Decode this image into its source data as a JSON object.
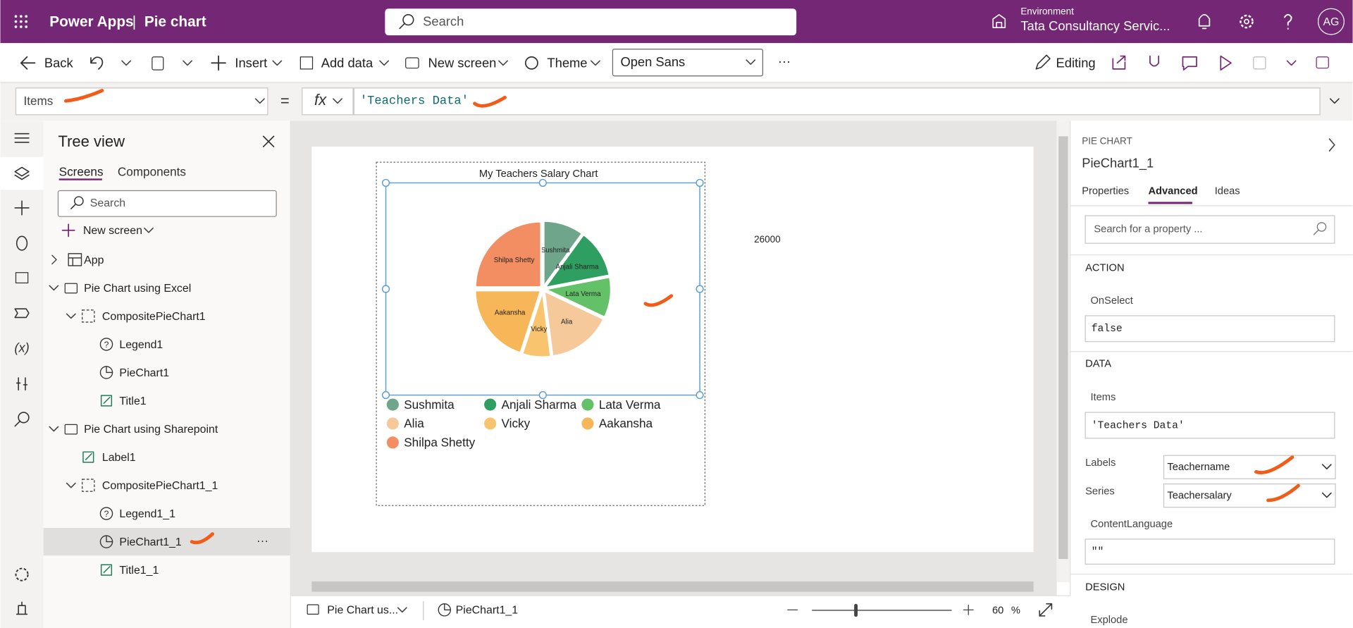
{
  "header": {
    "app_name": "Power Apps",
    "separator": "|",
    "page_name": "Pie chart",
    "search_placeholder": "Search",
    "environment_label": "Environment",
    "environment_name": "Tata Consultancy Servic...",
    "user_initials": "AG"
  },
  "toolbar": {
    "back": "Back",
    "insert": "Insert",
    "add_data": "Add data",
    "new_screen": "New screen",
    "theme": "Theme",
    "font": "Open Sans",
    "more": "···",
    "editing": "Editing"
  },
  "formula_bar": {
    "property": "Items",
    "equals": "=",
    "fx": "fx",
    "formula": "'Teachers Data'"
  },
  "tree_view": {
    "title": "Tree view",
    "tabs": [
      "Screens",
      "Components"
    ],
    "search_placeholder": "Search",
    "new_screen": "New screen",
    "items": [
      "App",
      "Pie Chart using Excel",
      "CompositePieChart1",
      "Legend1",
      "PieChart1",
      "Title1",
      "Pie Chart using Sharepoint",
      "Label1",
      "CompositePieChart1_1",
      "Legend1_1",
      "PieChart1_1",
      "Title1_1"
    ],
    "item_more": "···"
  },
  "chart_data": {
    "type": "pie",
    "title": "My Teachers Salary Chart",
    "categories": [
      "Sushmita",
      "Anjali Sharma",
      "Lata Verma",
      "Alia",
      "Vicky",
      "Aakansha",
      "Shilpa Shetty"
    ],
    "values": [
      10,
      12,
      10,
      16,
      7,
      20,
      25
    ],
    "colors": [
      "#6fa58a",
      "#2e9e61",
      "#63c168",
      "#f5c99a",
      "#f9c46e",
      "#f7b657",
      "#f28e61"
    ]
  },
  "canvas": {
    "label": 26000
  },
  "properties_panel": {
    "control_type": "PIE CHART",
    "control_name": "PieChart1_1",
    "tabs": [
      "Properties",
      "Advanced",
      "Ideas"
    ],
    "search_placeholder": "Search for a property ...",
    "action_heading": "ACTION",
    "onselect_label": "OnSelect",
    "onselect_value": "false",
    "data_heading": "DATA",
    "items_label": "Items",
    "items_value": "'Teachers Data'",
    "labels_label": "Labels",
    "labels_value": "Teachername",
    "series_label": "Series",
    "series_value": "Teachersalary",
    "content_language_label": "ContentLanguage",
    "content_language_value": "\"\"",
    "design_heading": "DESIGN",
    "explode_label": "Explode"
  },
  "status_bar": {
    "screen": "Pie Chart us...",
    "control": "PieChart1_1",
    "zoom": 60,
    "zoom_unit": "%"
  }
}
